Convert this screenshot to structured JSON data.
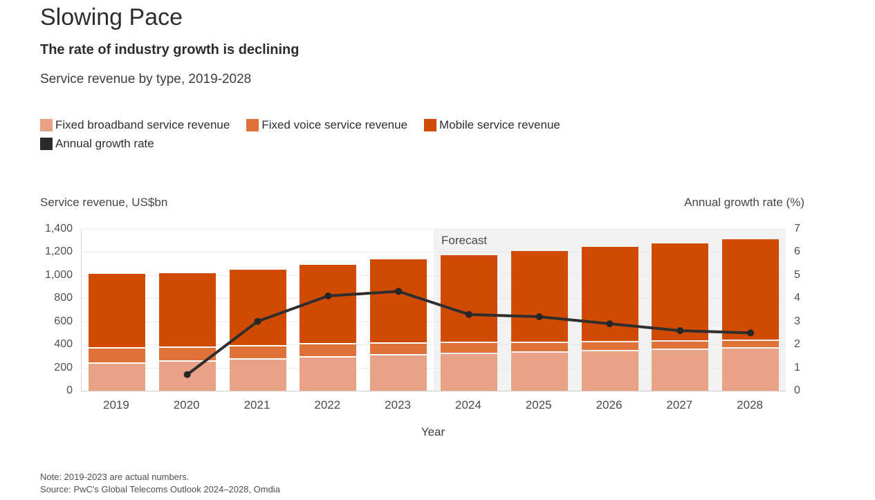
{
  "page": {
    "title": "Slowing Pace",
    "subtitle": "The rate of industry growth is declining",
    "description": "Service revenue by type, 2019-2028",
    "note": "Note: 2019-2023 are actual numbers.",
    "source": "Source: PwC's Global Telecoms Outlook 2024–2028, Omdia"
  },
  "legend": [
    {
      "label": "Fixed broadband service revenue",
      "color": "#E9A285"
    },
    {
      "label": "Fixed voice service revenue",
      "color": "#DF7239"
    },
    {
      "label": "Mobile service revenue",
      "color": "#D04A02"
    },
    {
      "label": "Annual growth rate",
      "color": "#2B2B2B"
    }
  ],
  "chart_data": {
    "type": "bar",
    "subtype": "stacked-bars-with-line",
    "title": "Service revenue by type, 2019-2028",
    "categories": [
      "2019",
      "2020",
      "2021",
      "2022",
      "2023",
      "2024",
      "2025",
      "2026",
      "2027",
      "2028"
    ],
    "series": [
      {
        "name": "Fixed broadband service revenue",
        "color": "#E9A285",
        "values": [
          235,
          250,
          268,
          288,
          305,
          318,
          330,
          342,
          352,
          362
        ]
      },
      {
        "name": "Fixed voice service revenue",
        "color": "#DF7239",
        "values": [
          130,
          122,
          116,
          110,
          102,
          92,
          85,
          78,
          72,
          66
        ]
      },
      {
        "name": "Mobile service revenue",
        "color": "#D04A02",
        "values": [
          645,
          643,
          661,
          692,
          728,
          760,
          795,
          825,
          851,
          882
        ]
      }
    ],
    "totals": [
      1010,
      1015,
      1045,
      1090,
      1135,
      1170,
      1210,
      1245,
      1275,
      1310
    ],
    "line_series": {
      "name": "Annual growth rate",
      "axis": "right",
      "color": "#2E2E2E",
      "values": [
        null,
        0.7,
        3.0,
        4.1,
        4.3,
        3.3,
        3.2,
        2.9,
        2.6,
        2.5
      ]
    },
    "left_axis": {
      "label": "Service revenue, US$bn",
      "min": 0,
      "max": 1400,
      "step": 200,
      "tick_labels": [
        "0",
        "200",
        "400",
        "600",
        "800",
        "1,000",
        "1,200",
        "1,400"
      ]
    },
    "right_axis": {
      "label": "Annual growth rate (%)",
      "min": 0,
      "max": 7,
      "step": 1,
      "tick_labels": [
        "0",
        "1",
        "2",
        "3",
        "4",
        "5",
        "6",
        "7"
      ]
    },
    "x_axis": {
      "label": "Year"
    },
    "forecast": {
      "label": "Forecast",
      "start_category": "2024"
    },
    "grid": true,
    "legend_position": "top",
    "colors": {
      "forecast_band": "#F2F2F2",
      "gridline": "#E9E9E9",
      "axis_text": "#4F4F4F"
    }
  }
}
